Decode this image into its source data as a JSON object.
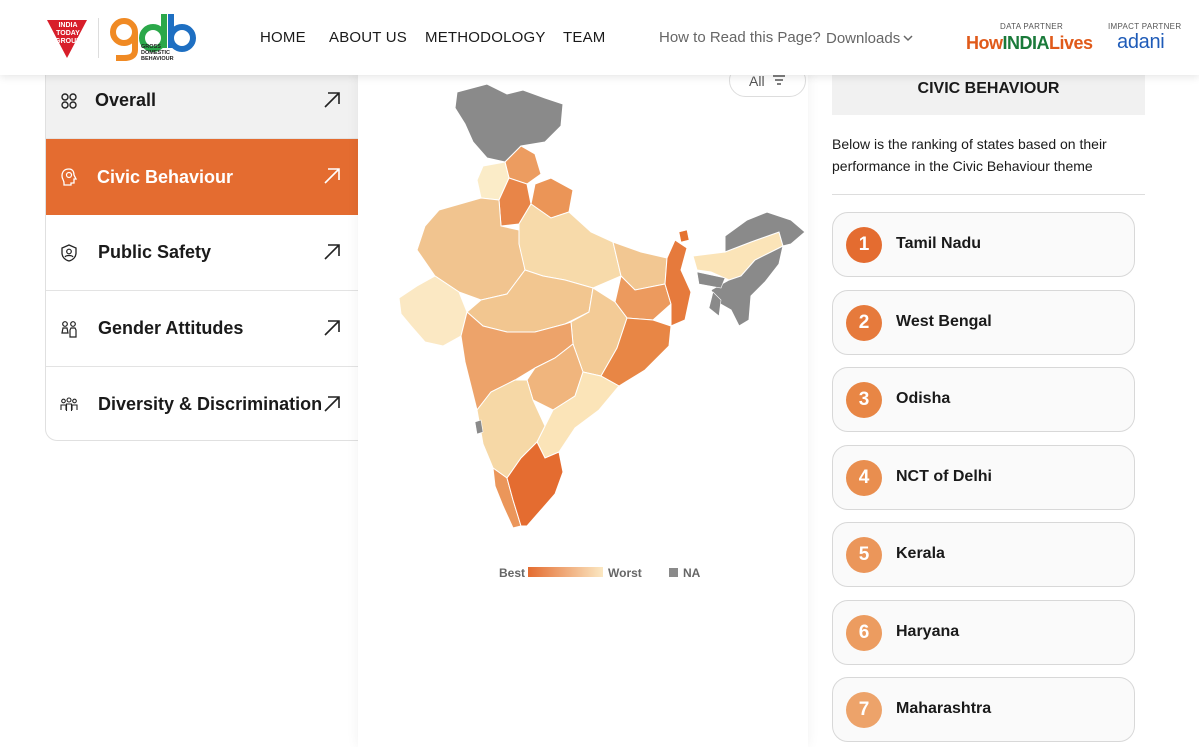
{
  "header": {
    "logo_itg_text": "INDIA TODAY GROUP",
    "logo_gdb_text": "gdb",
    "logo_gdb_sub": "GROSS DOMESTIC BEHAVIOUR",
    "nav": [
      "HOME",
      "ABOUT US",
      "METHODOLOGY",
      "TEAM"
    ],
    "how_to_read": "How to Read this Page?",
    "downloads": "Downloads",
    "data_partner_caption": "DATA PARTNER",
    "data_partner_name_parts": [
      "How",
      "INDIA",
      "Lives"
    ],
    "impact_partner_caption": "IMPACT PARTNER",
    "impact_partner_name": "adani"
  },
  "sidebar": {
    "items": [
      {
        "label": "Overall",
        "icon": "grid-icon",
        "active": false
      },
      {
        "label": "Civic Behaviour",
        "icon": "head-icon",
        "active": true
      },
      {
        "label": "Public Safety",
        "icon": "shield-user-icon",
        "active": false
      },
      {
        "label": "Gender Attitudes",
        "icon": "people-icon",
        "active": false
      },
      {
        "label": "Diversity & Discrimination",
        "icon": "group-icon",
        "active": false
      }
    ]
  },
  "map": {
    "filter_label": "All",
    "legend": {
      "best": "Best",
      "worst": "Worst",
      "na": "NA"
    },
    "colors": {
      "best": "#e46c30",
      "worst": "#fbe8c3",
      "na": "#8a8a8a"
    }
  },
  "ranking": {
    "title": "CIVIC BEHAVIOUR",
    "description": "Below is the ranking of states based on their performance in the Civic Behaviour theme",
    "items": [
      {
        "rank": "1",
        "state": "Tamil Nadu",
        "color": "#e46c30"
      },
      {
        "rank": "2",
        "state": "West Bengal",
        "color": "#e67a3c"
      },
      {
        "rank": "3",
        "state": "Odisha",
        "color": "#e88645"
      },
      {
        "rank": "4",
        "state": "NCT of Delhi",
        "color": "#e98e4f"
      },
      {
        "rank": "5",
        "state": "Kerala",
        "color": "#eb965a"
      },
      {
        "rank": "6",
        "state": "Haryana",
        "color": "#ec9c60"
      },
      {
        "rank": "7",
        "state": "Maharashtra",
        "color": "#ee a36a"
      }
    ]
  }
}
